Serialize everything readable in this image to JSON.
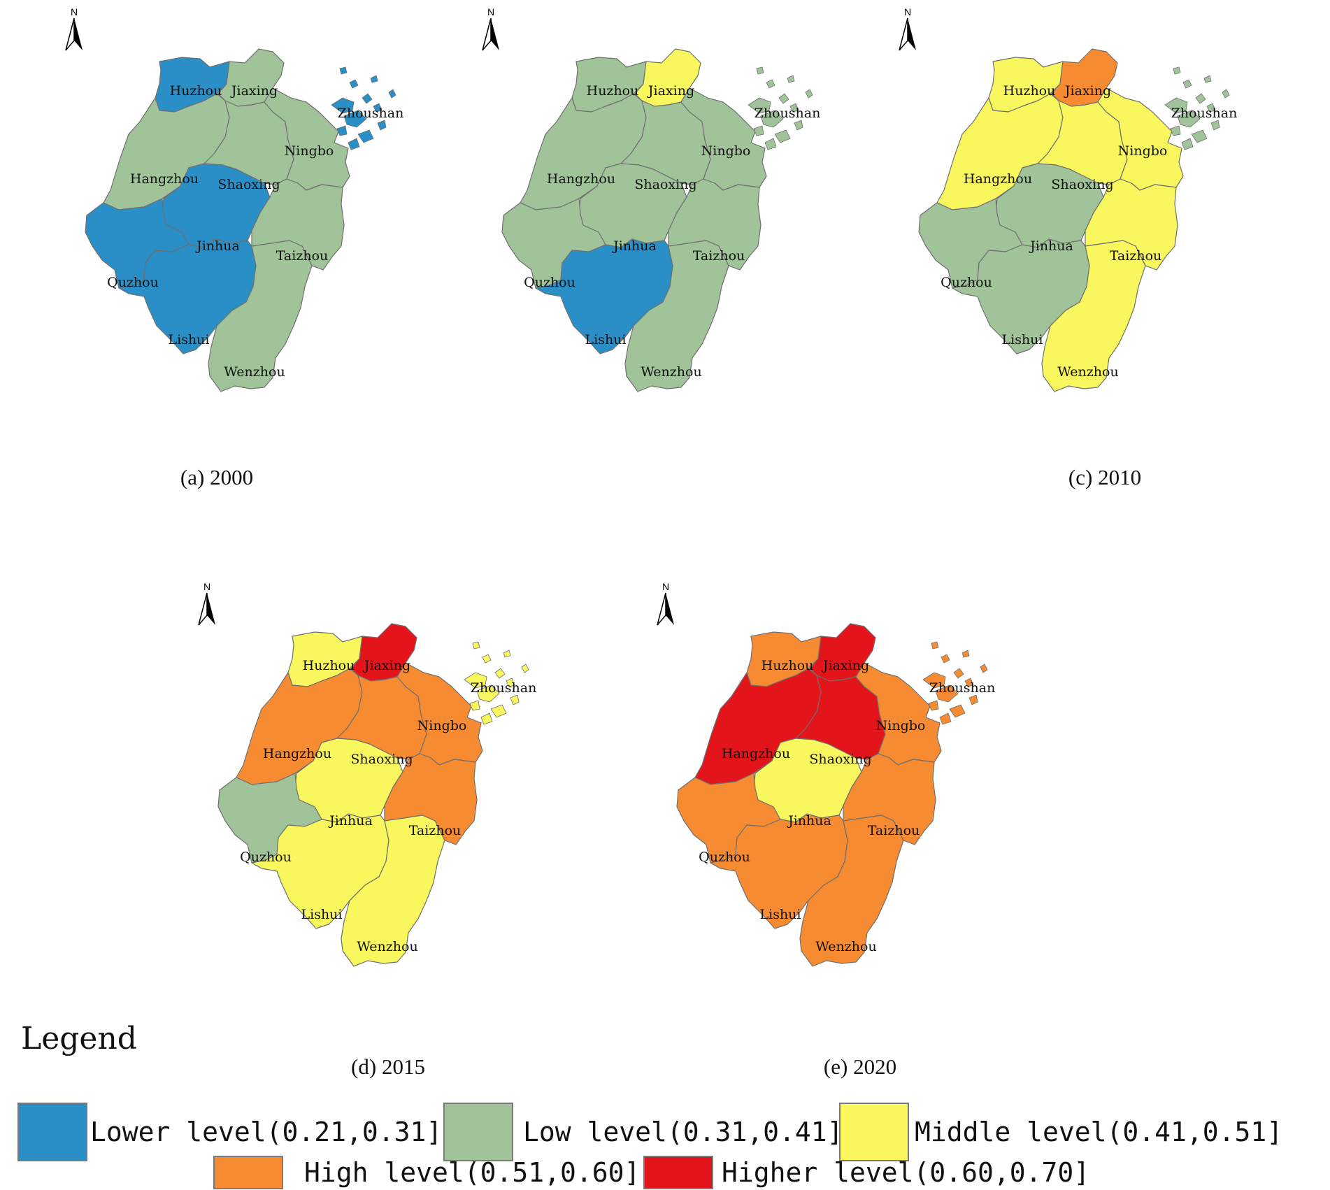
{
  "colors": {
    "lower": "#2a8fc6",
    "low": "#a1c39a",
    "middle": "#f8f75e",
    "high": "#f68b32",
    "higher": "#e3151b"
  },
  "north_label": "N",
  "panels": [
    {
      "caption": "(a) 2000",
      "levels": {
        "Huzhou": "lower",
        "Jiaxing": "low",
        "Zhoushan": "lower",
        "Hangzhou": "low",
        "Shaoxing": "low",
        "Ningbo": "low",
        "Jinhua": "lower",
        "Quzhou": "lower",
        "Taizhou": "low",
        "Lishui": "lower",
        "Wenzhou": "low"
      }
    },
    {
      "caption": "",
      "levels": {
        "Huzhou": "low",
        "Jiaxing": "middle",
        "Zhoushan": "low",
        "Hangzhou": "low",
        "Shaoxing": "low",
        "Ningbo": "low",
        "Jinhua": "low",
        "Quzhou": "low",
        "Taizhou": "low",
        "Lishui": "lower",
        "Wenzhou": "low"
      }
    },
    {
      "caption": "(c) 2010",
      "levels": {
        "Huzhou": "middle",
        "Jiaxing": "high",
        "Zhoushan": "low",
        "Hangzhou": "middle",
        "Shaoxing": "middle",
        "Ningbo": "middle",
        "Jinhua": "low",
        "Quzhou": "low",
        "Taizhou": "middle",
        "Lishui": "low",
        "Wenzhou": "middle"
      }
    },
    {
      "caption": "(d) 2015",
      "levels": {
        "Huzhou": "middle",
        "Jiaxing": "higher",
        "Zhoushan": "middle",
        "Hangzhou": "high",
        "Shaoxing": "high",
        "Ningbo": "high",
        "Jinhua": "middle",
        "Quzhou": "low",
        "Taizhou": "high",
        "Lishui": "middle",
        "Wenzhou": "middle"
      }
    },
    {
      "caption": "(e) 2020",
      "levels": {
        "Huzhou": "high",
        "Jiaxing": "higher",
        "Zhoushan": "high",
        "Hangzhou": "higher",
        "Shaoxing": "higher",
        "Ningbo": "high",
        "Jinhua": "middle",
        "Quzhou": "high",
        "Taizhou": "high",
        "Lishui": "high",
        "Wenzhou": "high"
      }
    }
  ],
  "legend": {
    "title": "Legend",
    "items": [
      {
        "level": "lower",
        "label": "Lower level(0.21,0.31]"
      },
      {
        "level": "low",
        "label": "Low level(0.31,0.41]"
      },
      {
        "level": "middle",
        "label": "Middle level(0.41,0.51]"
      },
      {
        "level": "high",
        "label": "High level(0.51,0.60]"
      },
      {
        "level": "higher",
        "label": "Higher level(0.60,0.70]"
      }
    ]
  }
}
